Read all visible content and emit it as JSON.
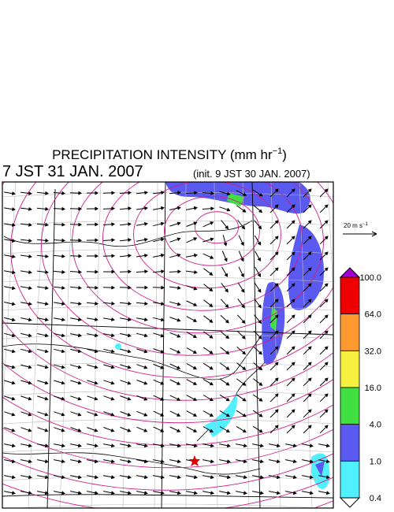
{
  "header": {
    "title": {
      "text": "PRECIPITATION INTENSITY (mm hr",
      "superscript": "−1",
      "suffix": ")"
    },
    "valid_time": "7 JST 31 JAN. 2007",
    "init_time": "(init. 9 JST 30 JAN. 2007)"
  },
  "vector_key": {
    "text": "20 m s",
    "superscript": "−1"
  },
  "colorbar": {
    "levels": [
      {
        "label": "100.0",
        "color": "#a000d0"
      },
      {
        "label": "64.0",
        "color": "#ee0000"
      },
      {
        "label": "32.0",
        "color": "#ff9a30"
      },
      {
        "label": "16.0",
        "color": "#f8f040"
      },
      {
        "label": "4.0",
        "color": "#40e040"
      },
      {
        "label": "1.0",
        "color": "#5a5af0"
      },
      {
        "label": "0.4",
        "color": "#50f0ff"
      }
    ]
  }
}
